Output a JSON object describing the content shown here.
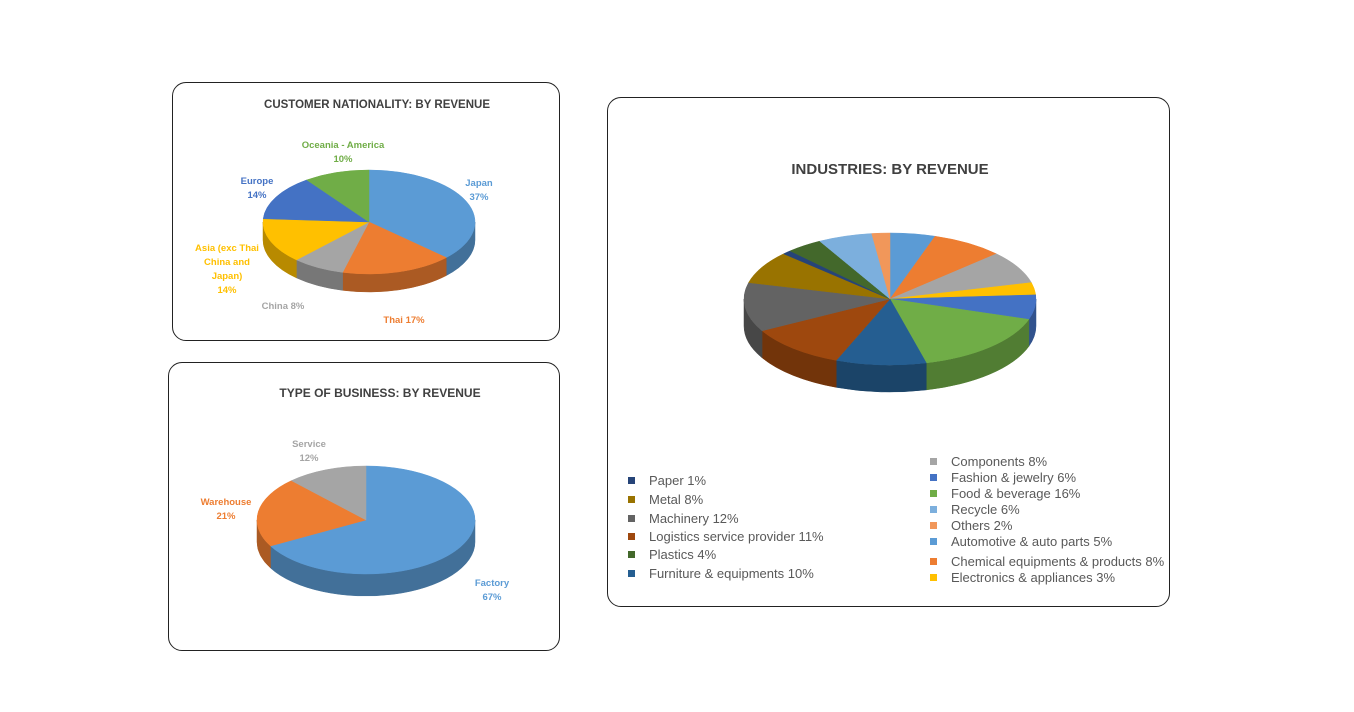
{
  "chart_data": [
    {
      "type": "pie",
      "title": "CUSTOMER NATIONALITY:  BY REVENUE",
      "slices": [
        {
          "label": "Japan",
          "value": 37,
          "display": "37%",
          "color": "#5B9BD5"
        },
        {
          "label": "Thai",
          "value": 17,
          "display": "17%",
          "color": "#ED7D31"
        },
        {
          "label": "China",
          "value": 8,
          "display": "8%",
          "color": "#A5A5A5"
        },
        {
          "label": "Asia (exc Thai China and Japan)",
          "value": 14,
          "display": "14%",
          "color": "#FFC000"
        },
        {
          "label": "Europe",
          "value": 14,
          "display": "14%",
          "color": "#4472C4"
        },
        {
          "label": "Oceania - America",
          "value": 10,
          "display": "10%",
          "color": "#70AD47"
        }
      ]
    },
    {
      "type": "pie",
      "title": "TYPE OF BUSINESS:  BY REVENUE",
      "slices": [
        {
          "label": "Factory",
          "value": 67,
          "display": "67%",
          "color": "#5B9BD5"
        },
        {
          "label": "Warehouse",
          "value": 21,
          "display": "21%",
          "color": "#ED7D31"
        },
        {
          "label": "Service",
          "value": 12,
          "display": "12%",
          "color": "#A5A5A5"
        }
      ]
    },
    {
      "type": "pie",
      "title": "INDUSTRIES:  BY REVENUE",
      "slices": [
        {
          "label": "Automotive & auto parts",
          "value": 5,
          "display": "5%",
          "color": "#5B9BD5"
        },
        {
          "label": "Chemical equipments & products",
          "value": 8,
          "display": "8%",
          "color": "#ED7D31"
        },
        {
          "label": "Components",
          "value": 8,
          "display": "8%",
          "color": "#A5A5A5"
        },
        {
          "label": "Electronics & appliances",
          "value": 3,
          "display": "3%",
          "color": "#FFC000"
        },
        {
          "label": "Fashion & jewelry",
          "value": 6,
          "display": "6%",
          "color": "#4472C4"
        },
        {
          "label": "Food & beverage",
          "value": 16,
          "display": "16%",
          "color": "#70AD47"
        },
        {
          "label": "Furniture & equipments",
          "value": 10,
          "display": "10%",
          "color": "#255E91"
        },
        {
          "label": "Logistics service provider",
          "value": 11,
          "display": "11%",
          "color": "#9E480E"
        },
        {
          "label": "Machinery",
          "value": 12,
          "display": "12%",
          "color": "#636363"
        },
        {
          "label": "Metal",
          "value": 8,
          "display": "8%",
          "color": "#997300"
        },
        {
          "label": "Paper",
          "value": 1,
          "display": "1%",
          "color": "#264478"
        },
        {
          "label": "Plastics",
          "value": 4,
          "display": "4%",
          "color": "#43682B"
        },
        {
          "label": "Recycle",
          "value": 6,
          "display": "6%",
          "color": "#7CAFDD"
        },
        {
          "label": "Others",
          "value": 2,
          "display": "2%",
          "color": "#F1975A"
        }
      ],
      "legend": [
        {
          "text": "Paper 1%",
          "color": "#264478"
        },
        {
          "text": "Metal 8%",
          "color": "#997300"
        },
        {
          "text": "Machinery 12%",
          "color": "#636363"
        },
        {
          "text": "Logistics service provider 11%",
          "color": "#9E480E"
        },
        {
          "text": "Plastics 4%",
          "color": "#43682B"
        },
        {
          "text": "Furniture & equipments 10%",
          "color": "#255E91"
        },
        {
          "text": "Components 8%",
          "color": "#A5A5A5"
        },
        {
          "text": "Fashion & jewelry 6%",
          "color": "#4472C4"
        },
        {
          "text": "Food & beverage 16%",
          "color": "#70AD47"
        },
        {
          "text": "Recycle 6%",
          "color": "#7CAFDD"
        },
        {
          "text": "Others 2%",
          "color": "#F1975A"
        },
        {
          "text": "Automotive & auto parts 5%",
          "color": "#5B9BD5"
        },
        {
          "text": "Chemical equipments & products 8%",
          "color": "#ED7D31"
        },
        {
          "text": "Electronics & appliances 3%",
          "color": "#FFC000"
        }
      ]
    }
  ]
}
